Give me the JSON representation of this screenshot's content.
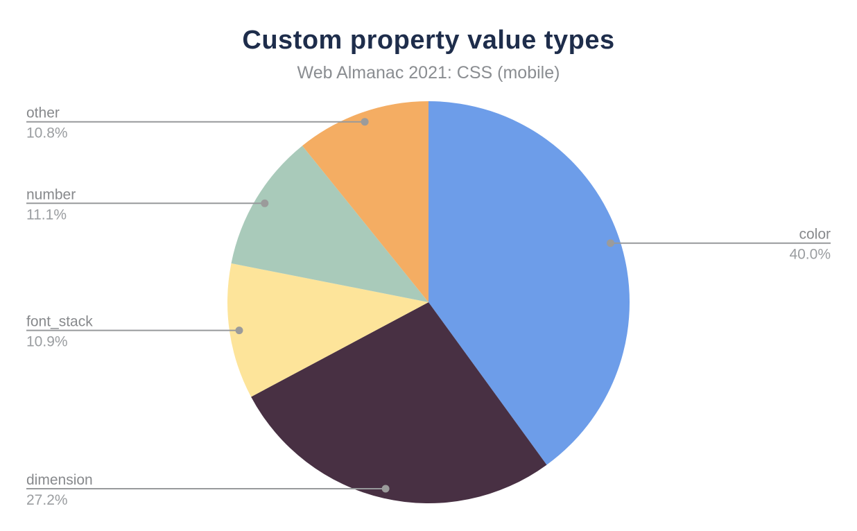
{
  "chart": {
    "title": "Custom property value types",
    "subtitle": "Web Almanac 2021: CSS (mobile)",
    "title_color": "#1e2d4b",
    "subtitle_color": "#8a8d91",
    "label_name_color": "#87898c",
    "label_pct_color": "#9a9da0",
    "leader_line_color": "#97999b",
    "leader_dot_color": "#9b9b9b",
    "background_color": "#ffffff"
  },
  "chart_data": {
    "type": "pie",
    "title": "Custom property value types",
    "subtitle": "Web Almanac 2021: CSS (mobile)",
    "categories": [
      "color",
      "dimension",
      "font_stack",
      "number",
      "other"
    ],
    "values": [
      40.0,
      27.2,
      10.9,
      11.1,
      10.8
    ],
    "value_labels": [
      "40.0%",
      "27.2%",
      "10.9%",
      "11.1%",
      "10.8%"
    ],
    "colors": [
      "#6d9de9",
      "#483043",
      "#fde49a",
      "#a9caba",
      "#f4ad63"
    ],
    "start_angle_deg": 0,
    "direction": "clockwise",
    "legend_position": "callout-labels",
    "label_sides": [
      "right",
      "left",
      "left",
      "left",
      "left"
    ]
  }
}
